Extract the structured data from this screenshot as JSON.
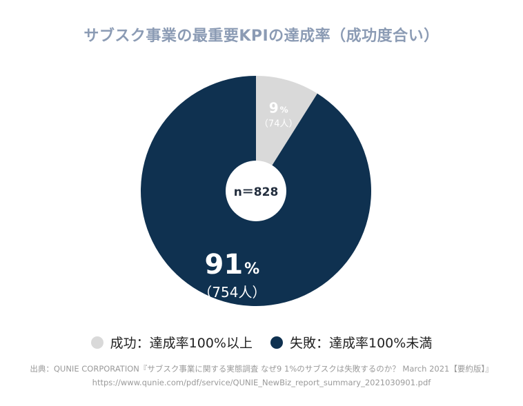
{
  "title": "サブスク事業の最重要KPIの達成率（成功度合い）",
  "chart_data": {
    "type": "pie",
    "total_label": "n＝828",
    "slices": [
      {
        "name": "成功：達成率100%以上",
        "value": 74,
        "percent_num": "9",
        "percent_unit": "%",
        "count_label": "（74人）",
        "color": "#d9d9d9",
        "text_color": "#ffffff"
      },
      {
        "name": "失敗：達成率100%未満",
        "value": 754,
        "percent_num": "91",
        "percent_unit": "%",
        "count_label": "（754人）",
        "color": "#0f3150",
        "text_color": "#ffffff"
      }
    ],
    "legend_position": "bottom"
  },
  "source": {
    "line1": "出典：QUNIE CORPORATION『サブスク事業に関する実態調査 なぜ9 1%のサブスクは失敗するのか？ March 2021【要約版】』",
    "line2": "https://www.qunie.com/pdf/service/QUNIE_NewBiz_report_summary_2021030901.pdf"
  }
}
